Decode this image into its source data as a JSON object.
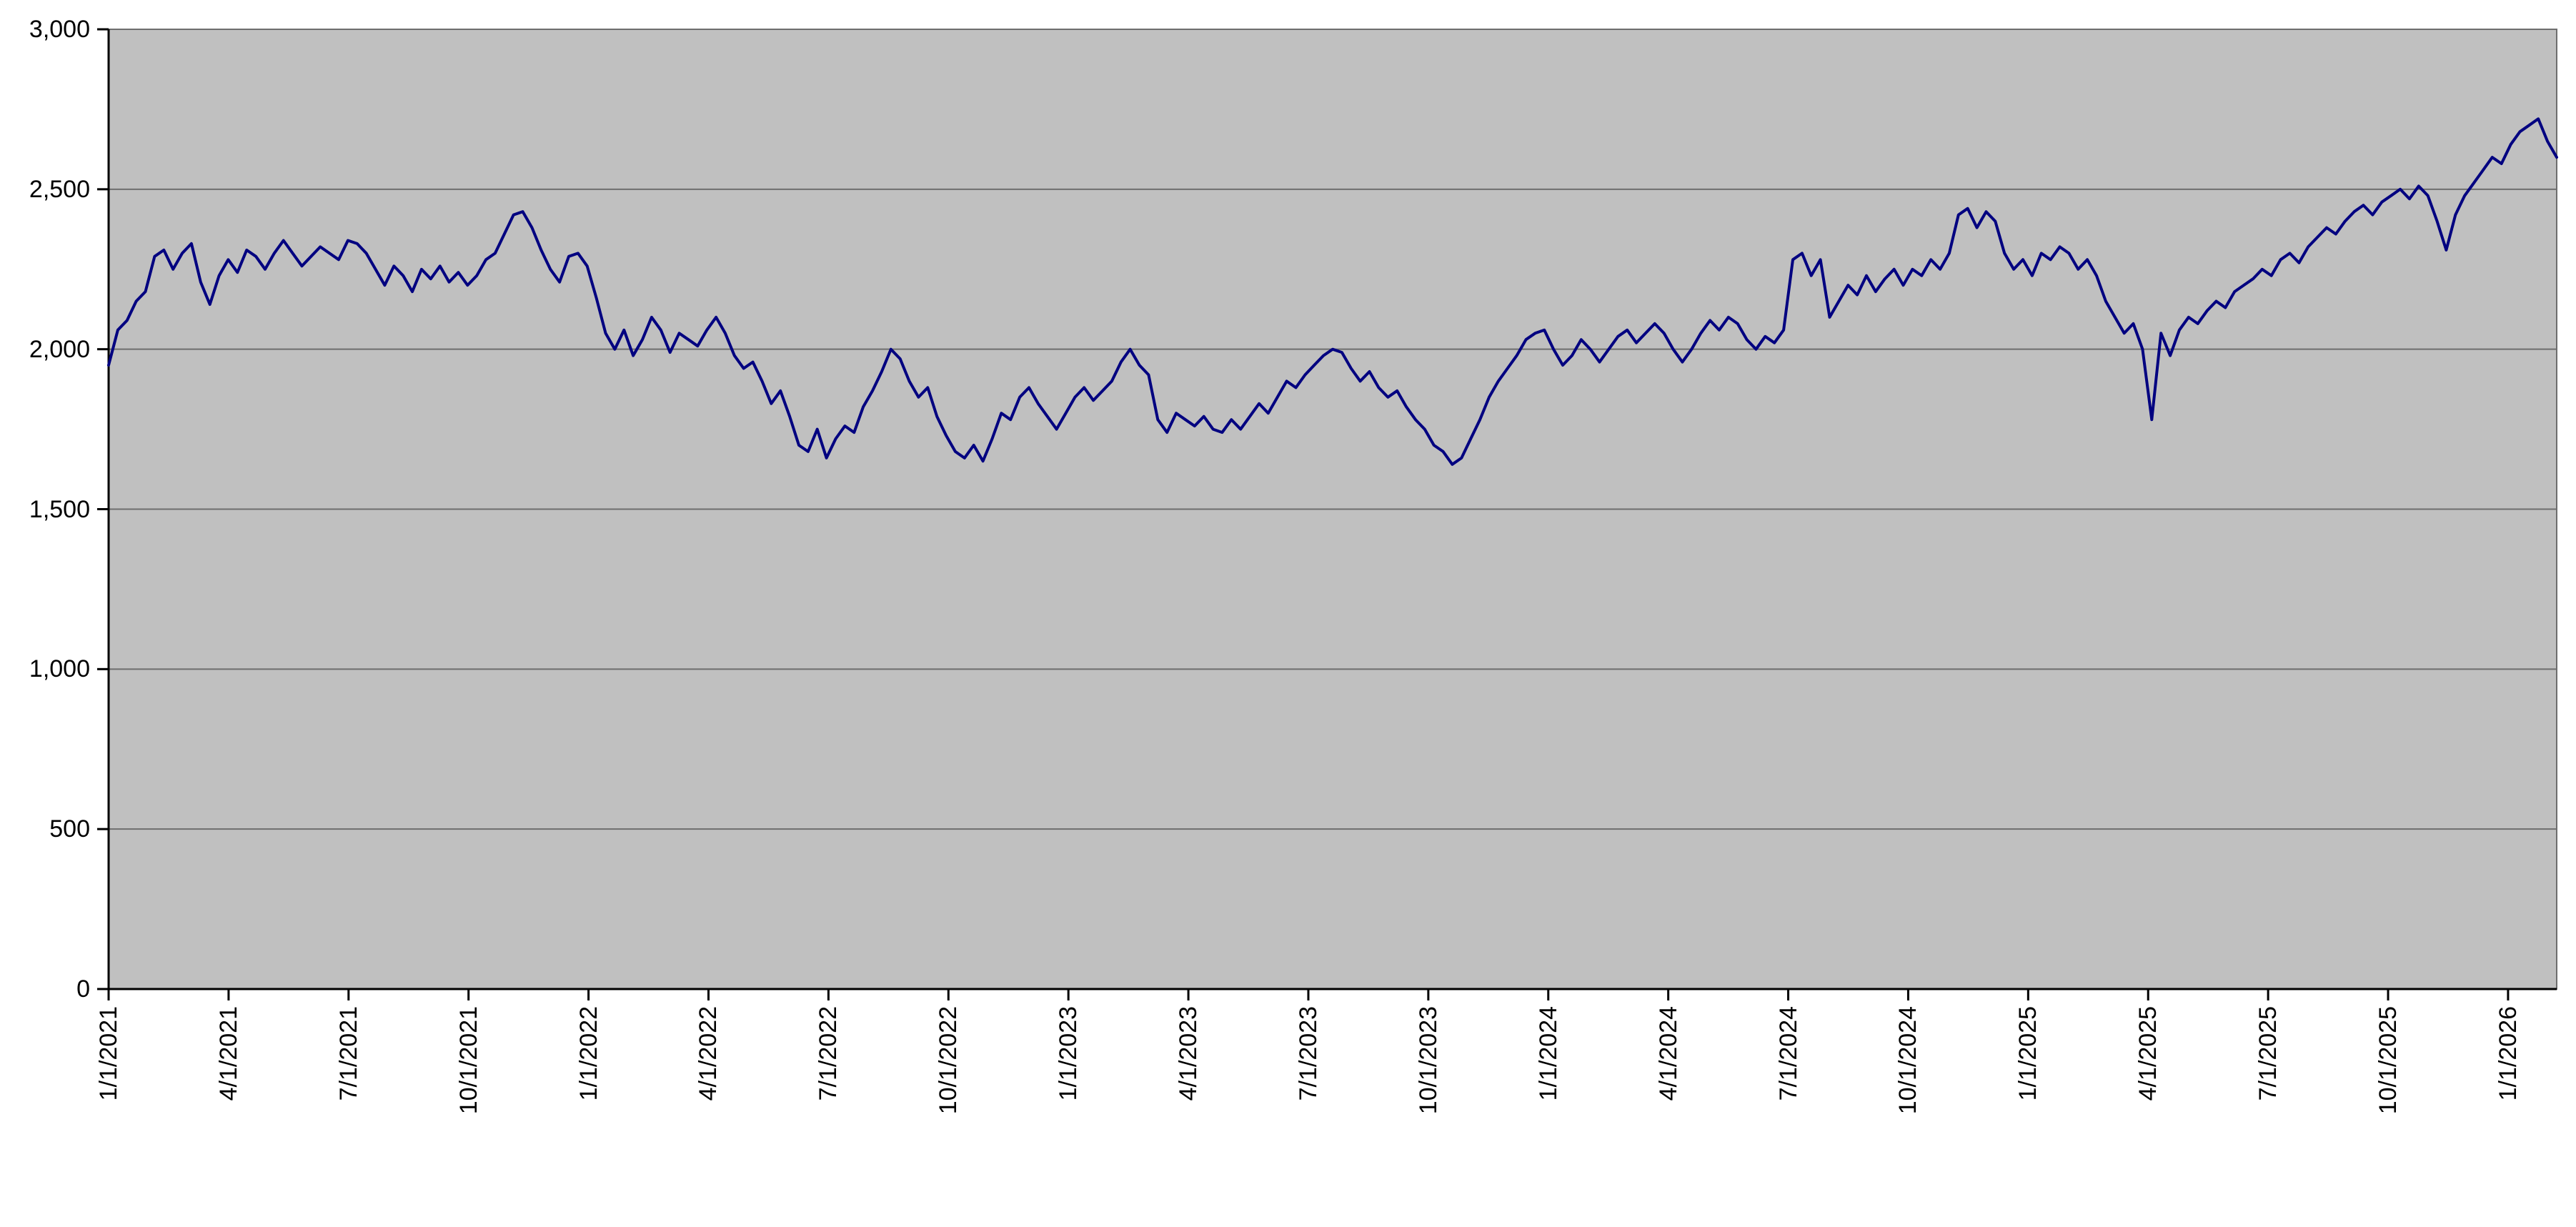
{
  "chart_data": {
    "type": "line",
    "title": "",
    "xlabel": "",
    "ylabel": "",
    "grid": true,
    "legend": "none",
    "plot_area_bg": "#c0c0c0",
    "gridline_color": "#6e6e6e",
    "axis_color": "#000000",
    "line_color": "#000080",
    "ylim": [
      0,
      3000
    ],
    "y_ticks": [
      0,
      500,
      1000,
      1500,
      2000,
      2500,
      3000
    ],
    "y_tick_labels": [
      "0",
      "500",
      "1,000",
      "1,500",
      "2,000",
      "2,500",
      "3,000"
    ],
    "x_tick_labels": [
      "1/1/2021",
      "4/1/2021",
      "7/1/2021",
      "10/1/2021",
      "1/1/2022",
      "4/1/2022",
      "7/1/2022",
      "10/1/2022",
      "1/1/2023",
      "4/1/2023",
      "7/1/2023",
      "10/1/2023",
      "1/1/2024",
      "4/1/2024",
      "7/1/2024",
      "10/1/2024",
      "1/1/2025",
      "4/1/2025",
      "7/1/2025",
      "10/1/2025",
      "1/1/2026"
    ],
    "x_start": "1/1/2021",
    "x_sampling": "weekly",
    "values": [
      1950,
      2060,
      2090,
      2150,
      2180,
      2290,
      2310,
      2250,
      2300,
      2330,
      2210,
      2140,
      2230,
      2280,
      2240,
      2310,
      2290,
      2250,
      2300,
      2340,
      2300,
      2260,
      2290,
      2320,
      2300,
      2280,
      2340,
      2330,
      2300,
      2250,
      2200,
      2260,
      2230,
      2180,
      2250,
      2220,
      2260,
      2210,
      2240,
      2200,
      2230,
      2280,
      2300,
      2360,
      2420,
      2430,
      2380,
      2310,
      2250,
      2210,
      2290,
      2300,
      2260,
      2160,
      2050,
      2000,
      2060,
      1980,
      2030,
      2100,
      2060,
      1990,
      2050,
      2030,
      2010,
      2060,
      2100,
      2050,
      1980,
      1940,
      1960,
      1900,
      1830,
      1870,
      1790,
      1700,
      1680,
      1750,
      1660,
      1720,
      1760,
      1740,
      1820,
      1870,
      1930,
      2000,
      1970,
      1900,
      1850,
      1880,
      1790,
      1730,
      1680,
      1660,
      1700,
      1650,
      1720,
      1800,
      1780,
      1850,
      1880,
      1830,
      1790,
      1750,
      1800,
      1850,
      1880,
      1840,
      1870,
      1900,
      1960,
      2000,
      1950,
      1920,
      1780,
      1740,
      1800,
      1780,
      1760,
      1790,
      1750,
      1740,
      1780,
      1750,
      1790,
      1830,
      1800,
      1850,
      1900,
      1880,
      1920,
      1950,
      1980,
      2000,
      1990,
      1940,
      1900,
      1930,
      1880,
      1850,
      1870,
      1820,
      1780,
      1750,
      1700,
      1680,
      1640,
      1660,
      1720,
      1780,
      1850,
      1900,
      1940,
      1980,
      2030,
      2050,
      2060,
      2000,
      1950,
      1980,
      2030,
      2000,
      1960,
      2000,
      2040,
      2060,
      2020,
      2050,
      2080,
      2050,
      2000,
      1960,
      2000,
      2050,
      2090,
      2060,
      2100,
      2080,
      2030,
      2000,
      2040,
      2020,
      2060,
      2280,
      2300,
      2230,
      2280,
      2100,
      2150,
      2200,
      2170,
      2230,
      2180,
      2220,
      2250,
      2200,
      2250,
      2230,
      2280,
      2250,
      2300,
      2420,
      2440,
      2380,
      2430,
      2400,
      2300,
      2250,
      2280,
      2230,
      2300,
      2280,
      2320,
      2300,
      2250,
      2280,
      2230,
      2150,
      2100,
      2050,
      2080,
      2000,
      1780,
      2050,
      1980,
      2060,
      2100,
      2080,
      2120,
      2150,
      2130,
      2180,
      2200,
      2220,
      2250,
      2230,
      2280,
      2300,
      2270,
      2320,
      2350,
      2380,
      2360,
      2400,
      2430,
      2450,
      2420,
      2460,
      2480,
      2500,
      2470,
      2510,
      2480,
      2400,
      2310,
      2420,
      2480,
      2520,
      2560,
      2600,
      2580,
      2640,
      2680,
      2700,
      2720,
      2650,
      2600
    ]
  }
}
